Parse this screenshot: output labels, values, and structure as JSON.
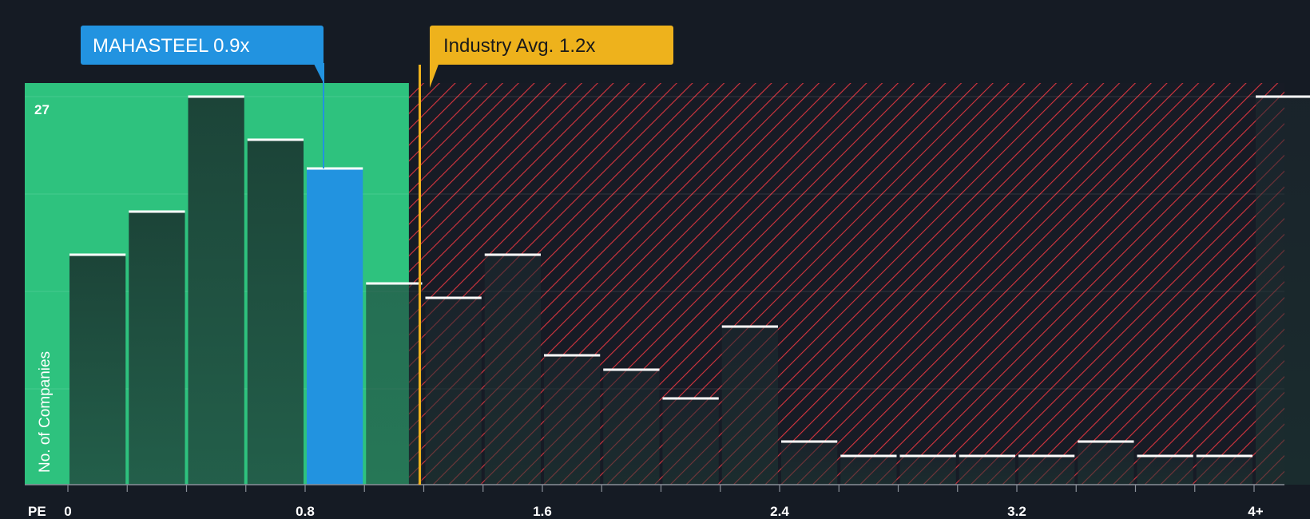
{
  "chart_data": {
    "type": "bar",
    "title": "",
    "xlabel": "PE",
    "ylabel": "No. of Companies",
    "x_ticks": [
      {
        "value": 0,
        "label": "0"
      },
      {
        "value": 0.8,
        "label": "0.8"
      },
      {
        "value": 1.6,
        "label": "1.6"
      },
      {
        "value": 2.4,
        "label": "2.4"
      },
      {
        "value": 3.2,
        "label": "3.2"
      },
      {
        "value": 4.1,
        "label": "4+"
      }
    ],
    "y_ticks": [
      {
        "value": 27,
        "label": "27"
      }
    ],
    "ylim": [
      0,
      27
    ],
    "bin_width": 0.2,
    "bins": [
      {
        "x0": 0.0,
        "value": 16
      },
      {
        "x0": 0.2,
        "value": 19
      },
      {
        "x0": 0.4,
        "value": 27
      },
      {
        "x0": 0.6,
        "value": 24
      },
      {
        "x0": 0.8,
        "value": 22,
        "highlight": true
      },
      {
        "x0": 1.0,
        "value": 14
      },
      {
        "x0": 1.2,
        "value": 13
      },
      {
        "x0": 1.4,
        "value": 16
      },
      {
        "x0": 1.6,
        "value": 9
      },
      {
        "x0": 1.8,
        "value": 8
      },
      {
        "x0": 2.0,
        "value": 6
      },
      {
        "x0": 2.2,
        "value": 11
      },
      {
        "x0": 2.4,
        "value": 3
      },
      {
        "x0": 2.6,
        "value": 2
      },
      {
        "x0": 2.8,
        "value": 2
      },
      {
        "x0": 3.0,
        "value": 2
      },
      {
        "x0": 3.2,
        "value": 2
      },
      {
        "x0": 3.4,
        "value": 3
      },
      {
        "x0": 3.6,
        "value": 2
      },
      {
        "x0": 3.8,
        "value": 2
      },
      {
        "x0": 4.0,
        "value": 27
      }
    ],
    "company": {
      "label": "MAHASTEEL 0.9x",
      "value": 0.9
    },
    "industry": {
      "label": "Industry Avg. 1.2x",
      "value": 1.2
    },
    "colors": {
      "background": "#151b24",
      "undervalued_zone": "#2ec27e",
      "overvalued_hatch": "#d8353f",
      "bar": "#1f4d3f",
      "bar_highlight": "#2293e0",
      "industry": "#eeb21c",
      "bar_top": "#ffffff"
    }
  }
}
